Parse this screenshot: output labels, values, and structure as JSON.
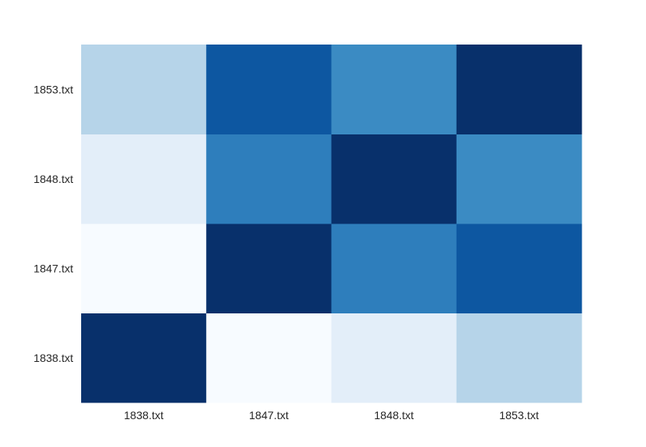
{
  "chart_data": {
    "type": "heatmap",
    "title": "",
    "xlabel": "",
    "ylabel": "",
    "x_categories": [
      "1838.txt",
      "1847.txt",
      "1848.txt",
      "1853.txt"
    ],
    "y_categories": [
      "1838.txt",
      "1847.txt",
      "1848.txt",
      "1853.txt"
    ],
    "values": [
      [
        1.0,
        0.0,
        0.1,
        0.3
      ],
      [
        0.0,
        1.0,
        0.7,
        0.85
      ],
      [
        0.1,
        0.7,
        1.0,
        0.65
      ],
      [
        0.3,
        0.85,
        0.65,
        1.0
      ]
    ],
    "vmin": 0.0,
    "vmax": 1.0,
    "colormap": "Blues",
    "colormap_stops": [
      "#f7fbff",
      "#deebf7",
      "#c6dbef",
      "#9ecae1",
      "#6baed6",
      "#4292c6",
      "#2171b5",
      "#08519c",
      "#08306b"
    ],
    "colorbar": false,
    "grid": false
  }
}
